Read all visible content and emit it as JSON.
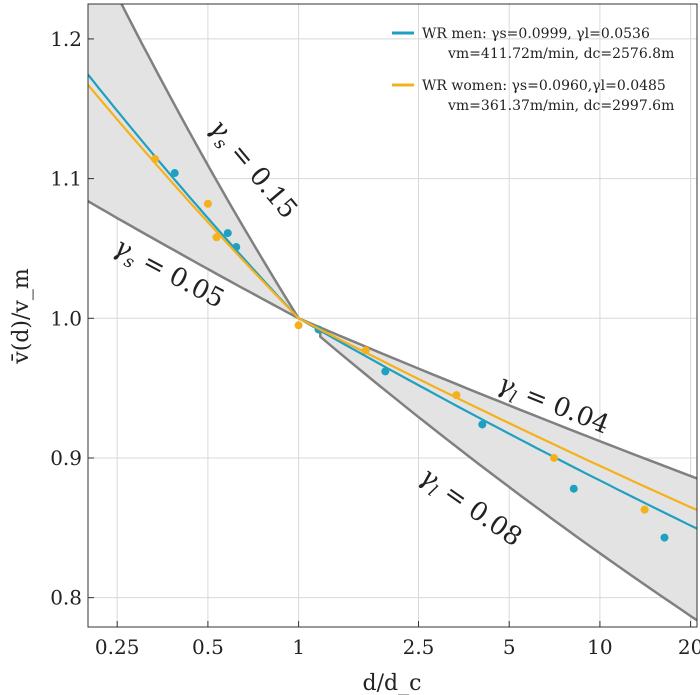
{
  "chart_data": {
    "type": "scatter",
    "title": "",
    "xlabel": "d/d_c",
    "ylabel": "v̄(d)/v_m",
    "xscale": "log",
    "xlim": [
      0.2,
      21
    ],
    "ylim": [
      0.779,
      1.225
    ],
    "xticks": [
      {
        "value": 0.25,
        "label": "0.25"
      },
      {
        "value": 0.5,
        "label": "0.5"
      },
      {
        "value": 1,
        "label": "1"
      },
      {
        "value": 2.5,
        "label": "2.5"
      },
      {
        "value": 5,
        "label": "5"
      },
      {
        "value": 10,
        "label": "10"
      },
      {
        "value": 20,
        "label": "20"
      }
    ],
    "yticks": [
      {
        "value": 0.8,
        "label": "0.8"
      },
      {
        "value": 0.9,
        "label": "0.9"
      },
      {
        "value": 1.0,
        "label": "1.0"
      },
      {
        "value": 1.1,
        "label": "1.1"
      },
      {
        "value": 1.2,
        "label": "1.2"
      }
    ],
    "bounds": {
      "gamma_s_high": 0.15,
      "gamma_s_low": 0.05,
      "gamma_l_low": 0.04,
      "gamma_l_high": 0.08,
      "fill_color": "#e3e3e3",
      "line_color": "#808080"
    },
    "annotations": [
      {
        "id": "gs015",
        "sym": "γ",
        "sub": "s",
        "text": " = 0.15"
      },
      {
        "id": "gs005",
        "sym": "γ",
        "sub": "s",
        "text": " = 0.05"
      },
      {
        "id": "gl004",
        "sym": "γ",
        "sub": "l",
        "text": " = 0.04"
      },
      {
        "id": "gl008",
        "sym": "γ",
        "sub": "l",
        "text": " = 0.08"
      }
    ],
    "series": [
      {
        "name": "WR men",
        "color": "#1ea0c0",
        "gamma_s": 0.0999,
        "gamma_l": 0.0536,
        "legend_line1": "WR men: γs=0.0999, γl=0.0536",
        "legend_line2": "vm=411.72m/min, dc=2576.8m",
        "points": [
          {
            "x": 0.388,
            "y": 1.104
          },
          {
            "x": 0.582,
            "y": 1.061
          },
          {
            "x": 0.621,
            "y": 1.051
          },
          {
            "x": 1.164,
            "y": 0.992
          },
          {
            "x": 1.94,
            "y": 0.962
          },
          {
            "x": 4.07,
            "y": 0.924
          },
          {
            "x": 8.19,
            "y": 0.878
          },
          {
            "x": 16.38,
            "y": 0.843
          }
        ]
      },
      {
        "name": "WR women",
        "color": "#f5b11b",
        "gamma_s": 0.096,
        "gamma_l": 0.0485,
        "legend_line1": "WR women: γs=0.0960,γl=0.0485",
        "legend_line2": "vm=361.37m/min, dc=2997.6m",
        "points": [
          {
            "x": 0.334,
            "y": 1.114
          },
          {
            "x": 0.5,
            "y": 1.082
          },
          {
            "x": 0.534,
            "y": 1.058
          },
          {
            "x": 1.0,
            "y": 0.995
          },
          {
            "x": 1.67,
            "y": 0.977
          },
          {
            "x": 3.34,
            "y": 0.945
          },
          {
            "x": 7.04,
            "y": 0.9
          },
          {
            "x": 14.07,
            "y": 0.863
          }
        ]
      }
    ]
  }
}
